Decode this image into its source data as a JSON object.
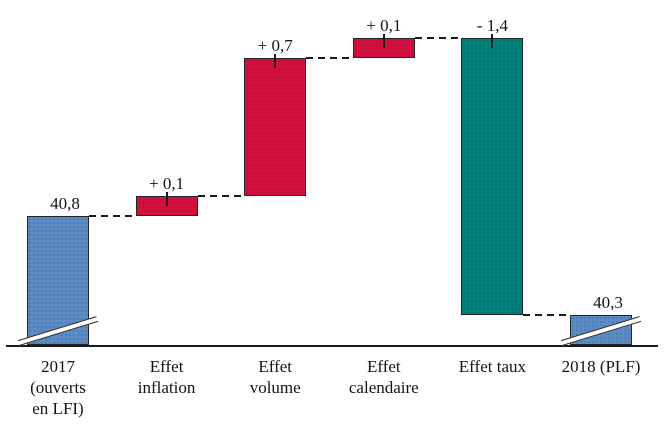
{
  "chart_data": {
    "type": "waterfall",
    "title": "",
    "description": "Waterfall bridge from 2017 (ouverts en LFI) to 2018 (PLF), values in decimal-comma notation",
    "axis": {
      "baseline_visible": true,
      "baseline_broken": true,
      "gridlines": false,
      "connector_style": "dashed"
    },
    "colors": {
      "total": "#5b8cc4",
      "increase": "#d2103e",
      "decrease": "#00837a",
      "line": "#1a1a1a"
    },
    "start_value": 40.8,
    "end_value": 40.3,
    "steps": [
      {
        "category": "2017 (ouverts en LFI)",
        "category_lines": [
          "2017",
          "(ouverts",
          "en LFI)"
        ],
        "label": "40,8",
        "kind": "total",
        "value": 40.8,
        "color": "blue",
        "axis_break": true
      },
      {
        "category": "Effet inflation",
        "category_lines": [
          "Effet",
          "inflation"
        ],
        "label": "+ 0,1",
        "kind": "delta",
        "delta": 0.1,
        "color": "red",
        "axis_break": false
      },
      {
        "category": "Effet volume",
        "category_lines": [
          "Effet",
          "volume"
        ],
        "label": "+ 0,7",
        "kind": "delta",
        "delta": 0.7,
        "color": "red",
        "axis_break": false
      },
      {
        "category": "Effet calendaire",
        "category_lines": [
          "Effet",
          "calendaire"
        ],
        "label": "+ 0,1",
        "kind": "delta",
        "delta": 0.1,
        "color": "red",
        "axis_break": false
      },
      {
        "category": "Effet taux",
        "category_lines": [
          "Effet taux"
        ],
        "label": "- 1,4",
        "kind": "delta",
        "delta": -1.4,
        "color": "teal",
        "axis_break": false
      },
      {
        "category": "2018 (PLF)",
        "category_lines": [
          "2018 (PLF)"
        ],
        "label": "40,3",
        "kind": "total",
        "value": 40.3,
        "color": "blue",
        "axis_break": true
      }
    ]
  }
}
